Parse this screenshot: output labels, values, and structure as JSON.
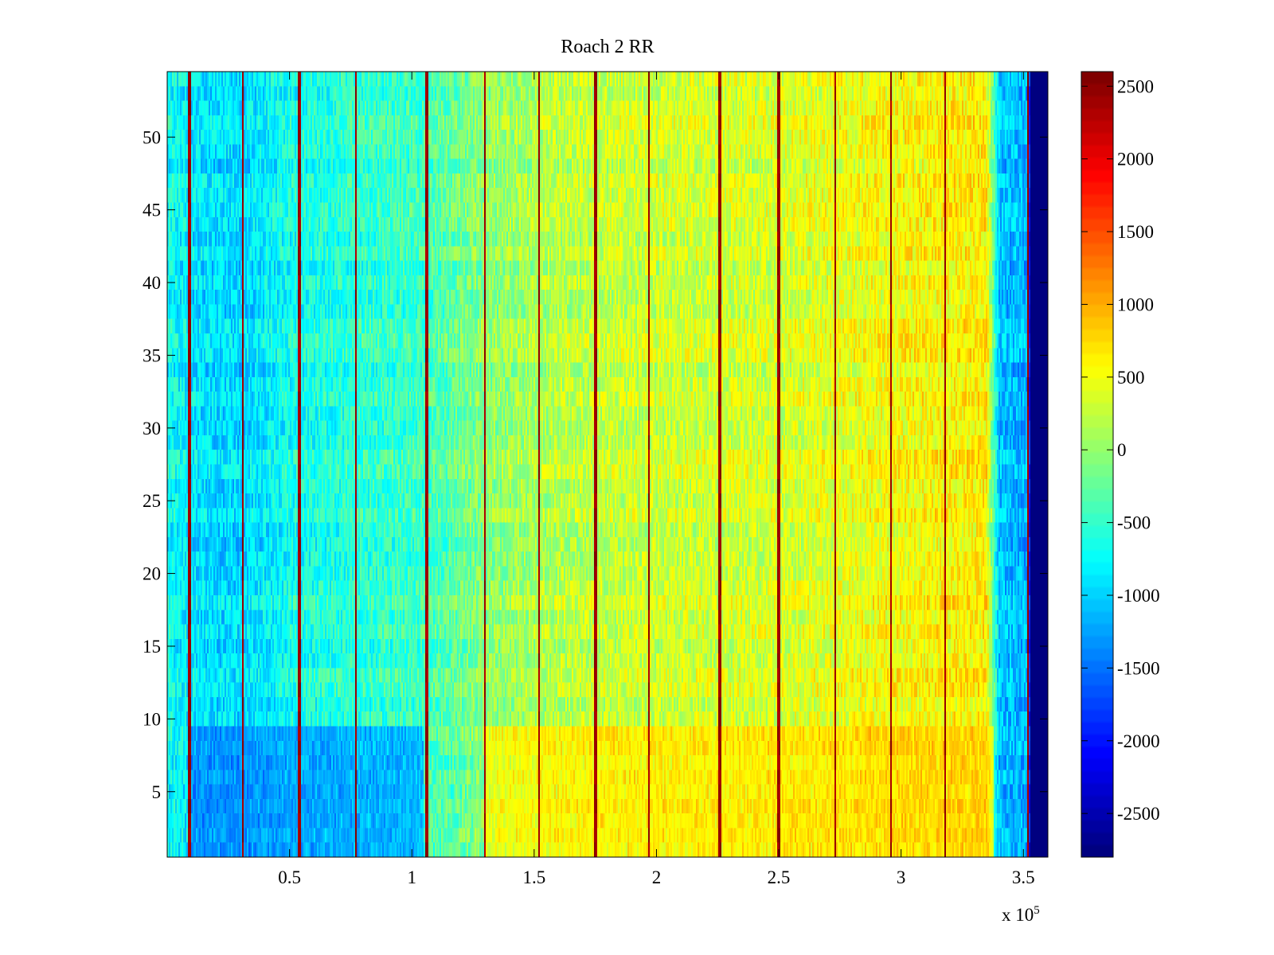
{
  "chart_data": {
    "type": "heatmap",
    "title": "Roach 2 RR",
    "xlabel": "",
    "ylabel": "",
    "x_multiplier": "x 10",
    "x_multiplier_exp": "5",
    "xlim": [
      0,
      3.6
    ],
    "ylim": [
      0.5,
      54.5
    ],
    "x_ticks": [
      0.5,
      1,
      1.5,
      2,
      2.5,
      3,
      3.5
    ],
    "x_tick_labels": [
      "0.5",
      "1",
      "1.5",
      "2",
      "2.5",
      "3",
      "3.5"
    ],
    "y_ticks": [
      5,
      10,
      15,
      20,
      25,
      30,
      35,
      40,
      45,
      50
    ],
    "y_tick_labels": [
      "5",
      "10",
      "15",
      "20",
      "25",
      "30",
      "35",
      "40",
      "45",
      "50"
    ],
    "rows": 54,
    "colormap": "jet",
    "clim": [
      -2800,
      2600
    ],
    "colorbar_ticks": [
      2500,
      2000,
      1500,
      1000,
      500,
      0,
      -500,
      -1000,
      -1500,
      -2000,
      -2500
    ],
    "colorbar_tick_labels": [
      "2500",
      "2000",
      "1500",
      "1000",
      "500",
      "0",
      "-500",
      "-1000",
      "-1500",
      "-2000",
      "-2500"
    ],
    "column_trend": [
      {
        "x": 0.0,
        "value": -700
      },
      {
        "x": 0.1,
        "value": -900
      },
      {
        "x": 0.3,
        "value": -1000
      },
      {
        "x": 0.5,
        "value": -700
      },
      {
        "x": 0.8,
        "value": -550
      },
      {
        "x": 1.05,
        "value": -450
      },
      {
        "x": 1.3,
        "value": -50
      },
      {
        "x": 1.6,
        "value": 200
      },
      {
        "x": 2.0,
        "value": 300
      },
      {
        "x": 2.5,
        "value": 350
      },
      {
        "x": 3.0,
        "value": 550
      },
      {
        "x": 3.35,
        "value": 650
      },
      {
        "x": 3.4,
        "value": -1100
      },
      {
        "x": 3.52,
        "value": -1200
      },
      {
        "x": 3.53,
        "value": -2800
      },
      {
        "x": 3.6,
        "value": -2800
      }
    ],
    "low_rows_region": {
      "rows": [
        1,
        9
      ],
      "x_range": [
        0.1,
        1.05
      ],
      "value": -1600
    },
    "high_rows_region": {
      "rows": [
        1,
        9
      ],
      "x_range": [
        1.3,
        3.38
      ],
      "value": 1000
    },
    "high_stripes_x": [
      0.09,
      0.31,
      0.54,
      0.77,
      1.06,
      1.3,
      1.52,
      1.75,
      1.97,
      2.26,
      2.5,
      2.73,
      2.96,
      3.18,
      3.52
    ]
  }
}
